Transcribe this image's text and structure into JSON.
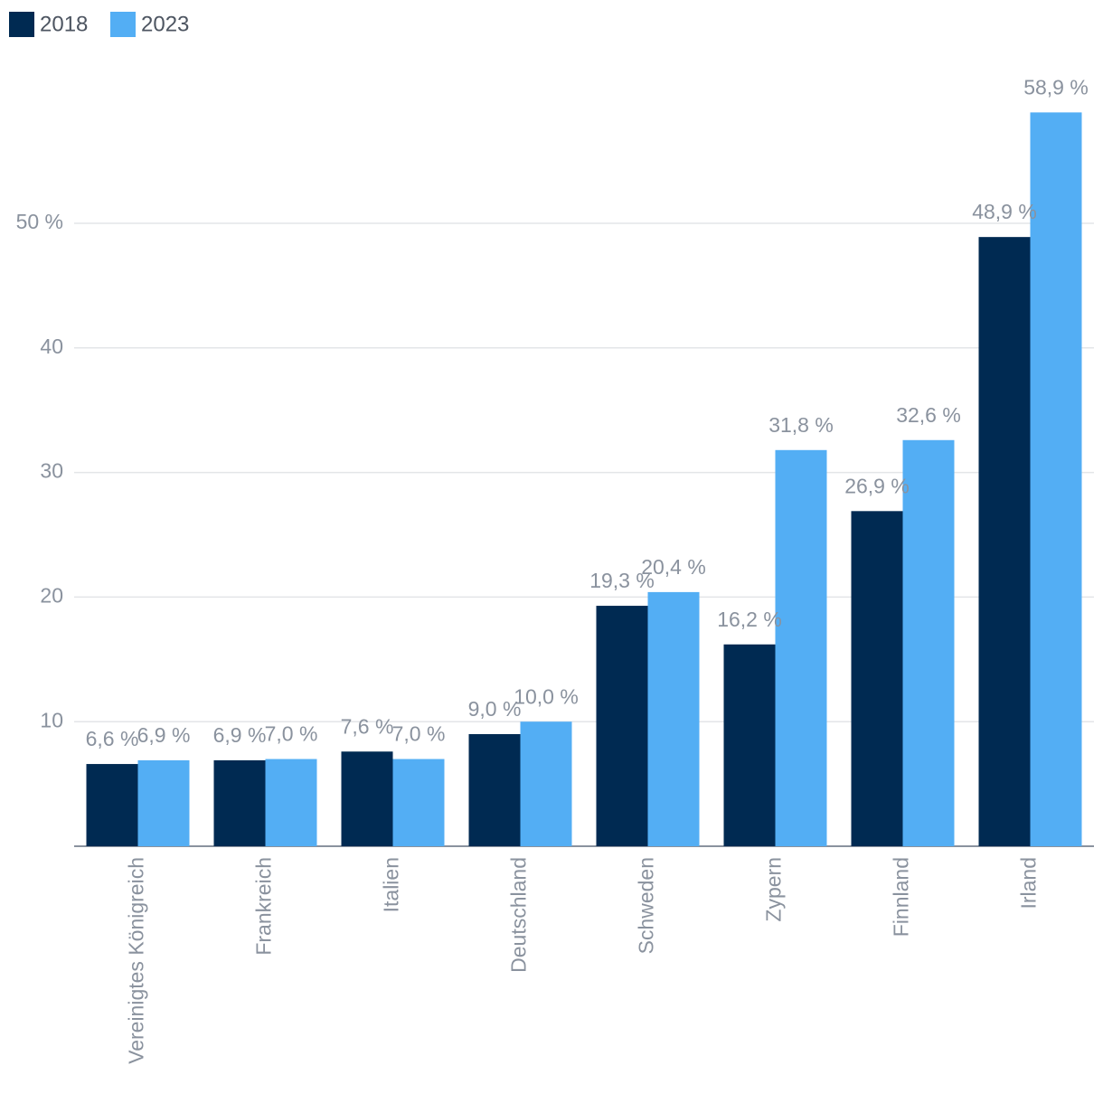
{
  "chart_data": {
    "type": "bar",
    "categories": [
      "Vereinigtes Königreich",
      "Frankreich",
      "Italien",
      "Deutschland",
      "Schweden",
      "Zypern",
      "Finnland",
      "Irland"
    ],
    "series": [
      {
        "name": "2018",
        "color": "#002a52",
        "values": [
          6.6,
          6.9,
          7.6,
          9.0,
          19.3,
          16.2,
          26.9,
          48.9
        ],
        "value_labels": [
          "6,6 %",
          "6,9 %",
          "7,6 %",
          "9,0 %",
          "19,3 %",
          "16,2 %",
          "26,9 %",
          "48,9 %"
        ]
      },
      {
        "name": "2023",
        "color": "#53aef4",
        "values": [
          6.9,
          7.0,
          7.0,
          10.0,
          20.4,
          31.8,
          32.6,
          58.9
        ],
        "value_labels": [
          "6,9 %",
          "7,0 %",
          "7,0 %",
          "10,0 %",
          "20,4 %",
          "31,8 %",
          "32,6 %",
          "58,9 %"
        ]
      }
    ],
    "ylim": [
      0,
      60
    ],
    "yticks": [
      10,
      20,
      30,
      40,
      {
        "value": 50,
        "label": "50 %"
      }
    ],
    "grid": true,
    "legend": "top-left"
  }
}
